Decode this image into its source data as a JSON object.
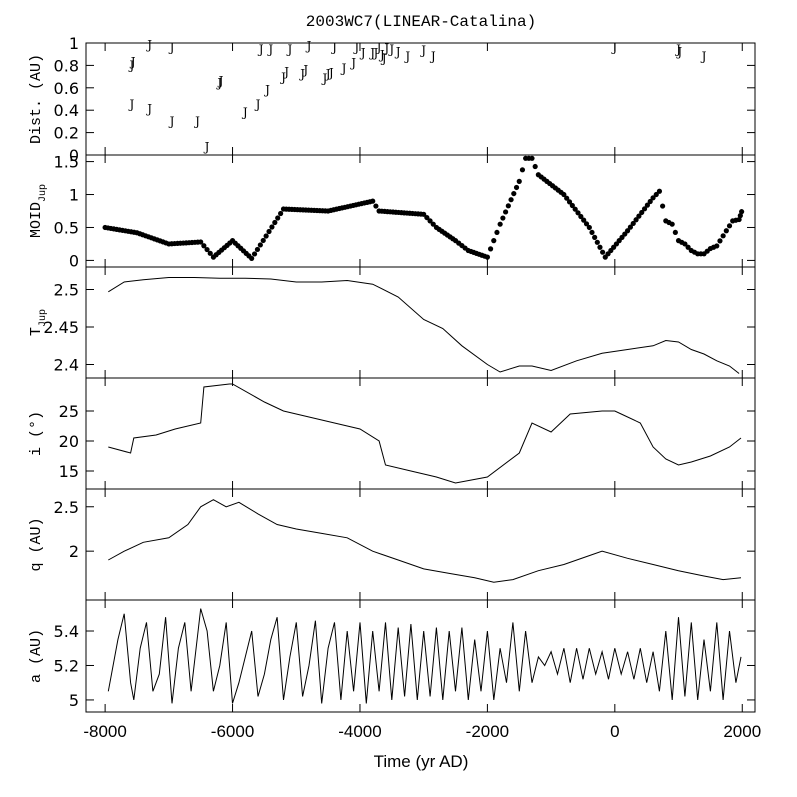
{
  "chart_data": {
    "type": "line",
    "title": "2003WC7(LINEAR-Catalina)",
    "xlabel": "Time (yr AD)",
    "xlim": [
      -8300,
      2200
    ],
    "xticks": [
      -8000,
      -6000,
      -4000,
      -2000,
      0,
      2000
    ],
    "xtick_labels": [
      "-8000",
      "-6000",
      "-4000",
      "-2000",
      "0",
      "2000"
    ],
    "panels": [
      {
        "key": "dist",
        "type": "scatter",
        "ylabel": "Dist. (AU)",
        "ylim": [
          0,
          1
        ],
        "yticks": [
          0,
          0.2,
          0.4,
          0.6,
          0.8,
          1
        ],
        "ytick_labels": [
          "0",
          "0.2",
          "0.4",
          "0.6",
          "0.8",
          "1"
        ],
        "marker": "J",
        "x": [
          -7580,
          -7560,
          -7580,
          -7300,
          -7300,
          -6950,
          -6950,
          -6550,
          -6400,
          -6200,
          -6180,
          -5800,
          -5600,
          -5550,
          -5450,
          -5400,
          -5200,
          -5150,
          -5100,
          -4900,
          -4850,
          -4800,
          -4550,
          -4500,
          -4450,
          -4400,
          -4250,
          -4100,
          -4050,
          -3950,
          -3800,
          -3750,
          -3700,
          -3650,
          -3620,
          -3580,
          -3500,
          -3400,
          -3250,
          -3000,
          -2850,
          0,
          1000,
          1020,
          1400
        ],
        "y": [
          0.81,
          0.84,
          0.46,
          0.99,
          0.42,
          0.97,
          0.31,
          0.31,
          0.08,
          0.65,
          0.67,
          0.39,
          0.46,
          0.95,
          0.59,
          0.95,
          0.7,
          0.75,
          0.95,
          0.73,
          0.77,
          0.98,
          0.69,
          0.73,
          0.74,
          0.97,
          0.78,
          0.83,
          0.97,
          0.92,
          0.92,
          0.92,
          0.97,
          0.9,
          0.87,
          0.96,
          0.95,
          0.93,
          0.89,
          0.94,
          0.89,
          0.97,
          0.95,
          0.93,
          0.89
        ]
      },
      {
        "key": "moid",
        "type": "scatter",
        "ylabel": "MOID",
        "ylabel_sub": "Jup",
        "ylim": [
          -0.1,
          1.6
        ],
        "yticks": [
          0,
          0.5,
          1,
          1.5
        ],
        "ytick_labels": [
          "0",
          "0.5",
          "1",
          "1.5"
        ],
        "x": [
          -8000,
          -7500,
          -7000,
          -6500,
          -6300,
          -6000,
          -5700,
          -5200,
          -4500,
          -3800,
          -3700,
          -3000,
          -2800,
          -2500,
          -2300,
          -2000,
          -1800,
          -1500,
          -1400,
          -1300,
          -1200,
          -800,
          -400,
          -150,
          200,
          600,
          700,
          800,
          900,
          1000,
          1100,
          1200,
          1300,
          1400,
          1500,
          1600,
          1750,
          1850,
          1950,
          1990
        ],
        "y": [
          0.5,
          0.42,
          0.25,
          0.28,
          0.05,
          0.3,
          0.03,
          0.78,
          0.75,
          0.9,
          0.75,
          0.7,
          0.5,
          0.3,
          0.15,
          0.05,
          0.55,
          1.2,
          1.55,
          1.55,
          1.3,
          1.0,
          0.5,
          0.05,
          0.45,
          0.95,
          1.05,
          0.6,
          0.55,
          0.3,
          0.25,
          0.15,
          0.1,
          0.1,
          0.18,
          0.22,
          0.45,
          0.6,
          0.62,
          0.74
        ]
      },
      {
        "key": "tjup",
        "type": "line",
        "ylabel": "T",
        "ylabel_sub": "Jup",
        "ylim": [
          2.382,
          2.53
        ],
        "yticks": [
          2.4,
          2.45,
          2.5
        ],
        "ytick_labels": [
          "2.4",
          "2.45",
          "2.5"
        ],
        "x": [
          -7950,
          -7700,
          -7400,
          -7000,
          -6600,
          -6200,
          -5800,
          -5400,
          -5000,
          -4600,
          -4200,
          -3800,
          -3400,
          -3000,
          -2700,
          -2400,
          -2000,
          -1800,
          -1500,
          -1300,
          -1000,
          -600,
          -200,
          200,
          600,
          800,
          1000,
          1200,
          1400,
          1600,
          1800,
          1950
        ],
        "y": [
          2.497,
          2.51,
          2.513,
          2.516,
          2.516,
          2.515,
          2.515,
          2.514,
          2.51,
          2.51,
          2.512,
          2.507,
          2.49,
          2.46,
          2.448,
          2.425,
          2.4,
          2.39,
          2.398,
          2.398,
          2.392,
          2.405,
          2.415,
          2.42,
          2.425,
          2.432,
          2.43,
          2.42,
          2.414,
          2.405,
          2.398,
          2.388
        ]
      },
      {
        "key": "inc",
        "type": "line",
        "ylabel": "i (°)",
        "ylim": [
          12,
          30.5
        ],
        "yticks": [
          15,
          20,
          25
        ],
        "ytick_labels": [
          "15",
          "20",
          "25"
        ],
        "x": [
          -7950,
          -7600,
          -7550,
          -7200,
          -6900,
          -6500,
          -6450,
          -6050,
          -6000,
          -5500,
          -5200,
          -4800,
          -4400,
          -4000,
          -3700,
          -3600,
          -3200,
          -3000,
          -2800,
          -2500,
          -2000,
          -1500,
          -1300,
          -1000,
          -700,
          -200,
          0,
          100,
          400,
          600,
          800,
          1000,
          1200,
          1500,
          1800,
          1980
        ],
        "y": [
          19,
          18,
          20.5,
          21,
          22,
          23,
          29,
          29.5,
          29.5,
          26.5,
          25,
          24,
          23,
          22,
          20,
          16,
          15,
          14.5,
          14,
          13,
          14,
          18,
          23,
          21.5,
          24.5,
          25,
          25,
          24.5,
          23,
          19,
          17,
          16,
          16.5,
          17.5,
          19,
          20.5
        ]
      },
      {
        "key": "q",
        "type": "line",
        "ylabel": "q (AU)",
        "ylim": [
          1.45,
          2.7
        ],
        "yticks": [
          2,
          2.5
        ],
        "ytick_labels": [
          "2",
          "2.5"
        ],
        "x": [
          -7950,
          -7700,
          -7400,
          -7000,
          -6700,
          -6500,
          -6300,
          -6100,
          -5900,
          -5600,
          -5300,
          -5000,
          -4600,
          -4200,
          -3800,
          -3400,
          -3000,
          -2600,
          -2200,
          -1900,
          -1600,
          -1200,
          -800,
          -400,
          -200,
          200,
          600,
          1000,
          1400,
          1700,
          1980
        ],
        "y": [
          1.9,
          2.0,
          2.1,
          2.15,
          2.3,
          2.5,
          2.58,
          2.5,
          2.55,
          2.42,
          2.3,
          2.25,
          2.2,
          2.15,
          2.0,
          1.9,
          1.8,
          1.75,
          1.7,
          1.65,
          1.68,
          1.78,
          1.85,
          1.95,
          2.0,
          1.92,
          1.85,
          1.78,
          1.72,
          1.68,
          1.7
        ]
      },
      {
        "key": "a",
        "type": "line",
        "ylabel": "a (AU)",
        "ylim": [
          4.93,
          5.58
        ],
        "yticks": [
          5,
          5.2,
          5.4
        ],
        "ytick_labels": [
          "5",
          "5.2",
          "5.4"
        ],
        "x": [
          -7950,
          -7900,
          -7800,
          -7700,
          -7600,
          -7550,
          -7450,
          -7350,
          -7250,
          -7150,
          -7050,
          -6950,
          -6850,
          -6750,
          -6650,
          -6500,
          -6400,
          -6300,
          -6200,
          -6100,
          -6000,
          -5900,
          -5800,
          -5700,
          -5600,
          -5500,
          -5400,
          -5300,
          -5200,
          -5100,
          -5000,
          -4900,
          -4800,
          -4700,
          -4600,
          -4500,
          -4400,
          -4300,
          -4200,
          -4100,
          -4000,
          -3900,
          -3800,
          -3700,
          -3600,
          -3500,
          -3400,
          -3300,
          -3200,
          -3100,
          -3000,
          -2900,
          -2800,
          -2700,
          -2600,
          -2500,
          -2400,
          -2300,
          -2200,
          -2100,
          -2000,
          -1900,
          -1800,
          -1700,
          -1600,
          -1500,
          -1400,
          -1300,
          -1200,
          -1100,
          -1000,
          -900,
          -800,
          -700,
          -600,
          -500,
          -400,
          -300,
          -200,
          -100,
          0,
          100,
          200,
          300,
          400,
          500,
          600,
          700,
          800,
          900,
          1000,
          1100,
          1200,
          1300,
          1400,
          1500,
          1600,
          1700,
          1800,
          1900,
          1980
        ],
        "y": [
          5.05,
          5.15,
          5.35,
          5.5,
          5.1,
          5.0,
          5.3,
          5.45,
          5.05,
          5.15,
          5.48,
          4.98,
          5.3,
          5.45,
          5.05,
          5.53,
          5.4,
          5.05,
          5.2,
          5.45,
          4.98,
          5.1,
          5.25,
          5.4,
          5.02,
          5.15,
          5.35,
          5.48,
          5.0,
          5.25,
          5.45,
          5.02,
          5.2,
          5.46,
          4.98,
          5.3,
          5.45,
          5.0,
          5.4,
          5.05,
          5.45,
          4.98,
          5.4,
          5.05,
          5.45,
          5.0,
          5.42,
          5.02,
          5.44,
          5.0,
          5.4,
          5.02,
          5.42,
          5.0,
          5.4,
          5.05,
          5.42,
          5.0,
          5.35,
          5.05,
          5.4,
          5.0,
          5.3,
          5.1,
          5.45,
          5.05,
          5.4,
          5.1,
          5.25,
          5.2,
          5.28,
          5.15,
          5.3,
          5.1,
          5.3,
          5.12,
          5.3,
          5.15,
          5.28,
          5.12,
          5.3,
          5.15,
          5.28,
          5.12,
          5.3,
          5.1,
          5.28,
          5.05,
          5.4,
          5.0,
          5.48,
          5.02,
          5.45,
          5.0,
          5.35,
          5.05,
          5.45,
          5.0,
          5.4,
          5.1,
          5.25
        ]
      }
    ]
  }
}
